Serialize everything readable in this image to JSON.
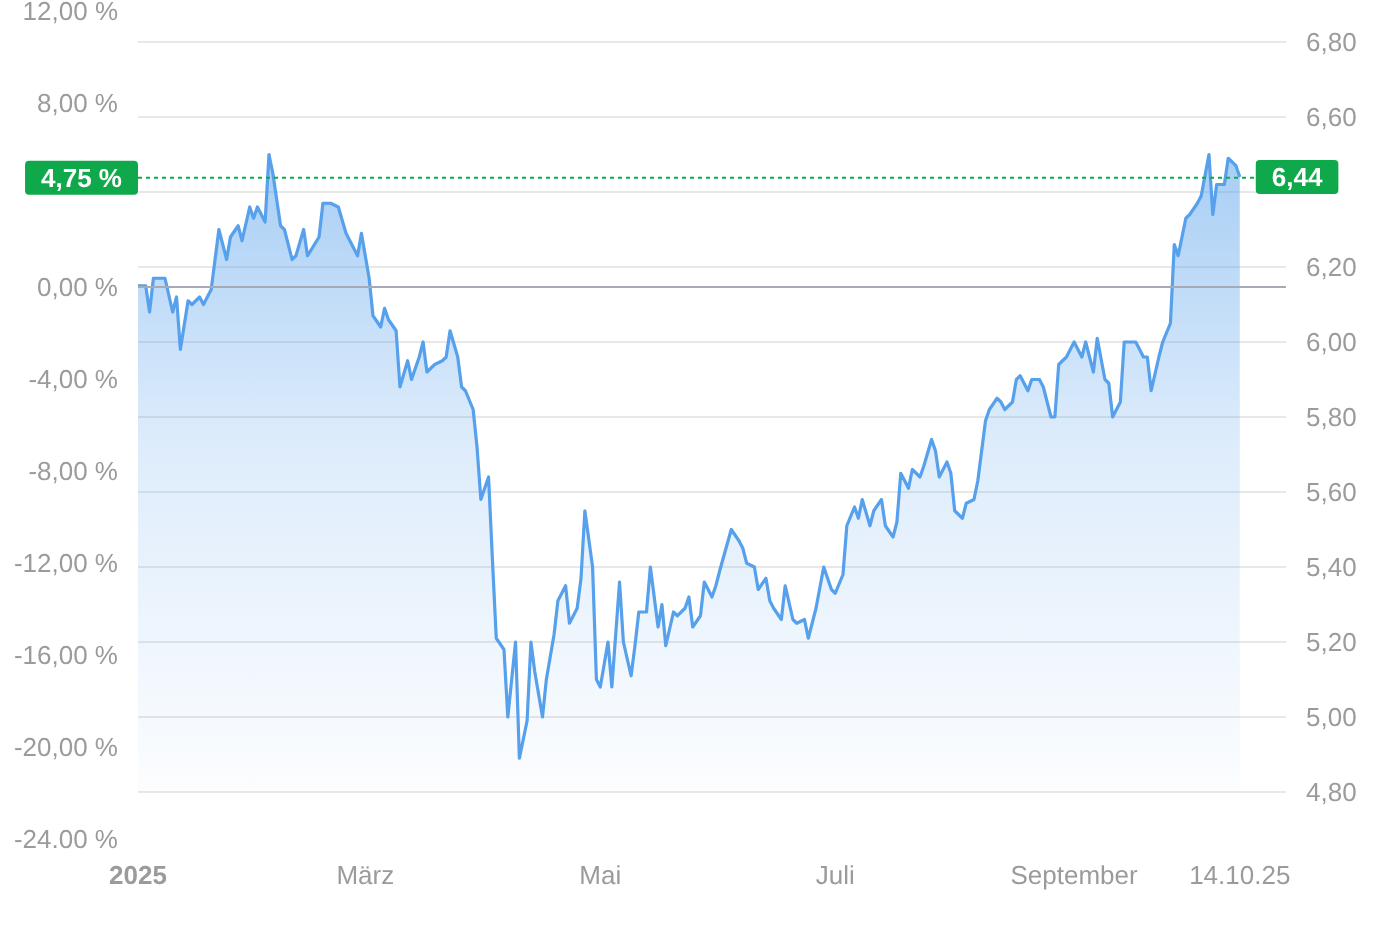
{
  "chart_data": {
    "type": "area",
    "x": [
      "2025-01-01",
      "2025-01-03",
      "2025-01-04",
      "2025-01-05",
      "2025-01-08",
      "2025-01-10",
      "2025-01-11",
      "2025-01-12",
      "2025-01-14",
      "2025-01-15",
      "2025-01-17",
      "2025-01-18",
      "2025-01-20",
      "2025-01-22",
      "2025-01-24",
      "2025-01-25",
      "2025-01-27",
      "2025-01-28",
      "2025-01-30",
      "2025-01-31",
      "2025-02-01",
      "2025-02-03",
      "2025-02-04",
      "2025-02-05",
      "2025-02-07",
      "2025-02-08",
      "2025-02-10",
      "2025-02-11",
      "2025-02-13",
      "2025-02-14",
      "2025-02-17",
      "2025-02-18",
      "2025-02-20",
      "2025-02-22",
      "2025-02-24",
      "2025-02-27",
      "2025-02-28",
      "2025-03-02",
      "2025-03-03",
      "2025-03-05",
      "2025-03-06",
      "2025-03-07",
      "2025-03-09",
      "2025-03-10",
      "2025-03-12",
      "2025-03-13",
      "2025-03-15",
      "2025-03-16",
      "2025-03-17",
      "2025-03-19",
      "2025-03-21",
      "2025-03-22",
      "2025-03-23",
      "2025-03-25",
      "2025-03-26",
      "2025-03-27",
      "2025-03-29",
      "2025-03-30",
      "2025-03-31",
      "2025-04-02",
      "2025-04-03",
      "2025-04-04",
      "2025-04-06",
      "2025-04-07",
      "2025-04-09",
      "2025-04-10",
      "2025-04-12",
      "2025-04-13",
      "2025-04-14",
      "2025-04-16",
      "2025-04-17",
      "2025-04-19",
      "2025-04-20",
      "2025-04-22",
      "2025-04-23",
      "2025-04-25",
      "2025-04-26",
      "2025-04-27",
      "2025-04-29",
      "2025-04-30",
      "2025-05-01",
      "2025-05-03",
      "2025-05-04",
      "2025-05-06",
      "2025-05-07",
      "2025-05-09",
      "2025-05-10",
      "2025-05-11",
      "2025-05-13",
      "2025-05-14",
      "2025-05-16",
      "2025-05-17",
      "2025-05-18",
      "2025-05-20",
      "2025-05-21",
      "2025-05-23",
      "2025-05-24",
      "2025-05-25",
      "2025-05-27",
      "2025-05-28",
      "2025-05-30",
      "2025-05-31",
      "2025-06-01",
      "2025-06-04",
      "2025-06-06",
      "2025-06-07",
      "2025-06-08",
      "2025-06-10",
      "2025-06-11",
      "2025-06-13",
      "2025-06-14",
      "2025-06-15",
      "2025-06-17",
      "2025-06-18",
      "2025-06-20",
      "2025-06-21",
      "2025-06-23",
      "2025-06-24",
      "2025-06-26",
      "2025-06-28",
      "2025-06-30",
      "2025-07-01",
      "2025-07-03",
      "2025-07-04",
      "2025-07-06",
      "2025-07-07",
      "2025-07-08",
      "2025-07-10",
      "2025-07-11",
      "2025-07-13",
      "2025-07-14",
      "2025-07-16",
      "2025-07-17",
      "2025-07-18",
      "2025-07-20",
      "2025-07-21",
      "2025-07-23",
      "2025-07-24",
      "2025-07-26",
      "2025-07-27",
      "2025-07-28",
      "2025-07-30",
      "2025-07-31",
      "2025-08-01",
      "2025-08-03",
      "2025-08-04",
      "2025-08-06",
      "2025-08-07",
      "2025-08-09",
      "2025-08-10",
      "2025-08-12",
      "2025-08-13",
      "2025-08-14",
      "2025-08-16",
      "2025-08-17",
      "2025-08-18",
      "2025-08-20",
      "2025-08-21",
      "2025-08-23",
      "2025-08-24",
      "2025-08-26",
      "2025-08-27",
      "2025-08-28",
      "2025-08-30",
      "2025-08-31",
      "2025-09-01",
      "2025-09-03",
      "2025-09-04",
      "2025-09-06",
      "2025-09-07",
      "2025-09-09",
      "2025-09-10",
      "2025-09-11",
      "2025-09-13",
      "2025-09-14",
      "2025-09-17",
      "2025-09-19",
      "2025-09-20",
      "2025-09-21",
      "2025-09-23",
      "2025-09-24",
      "2025-09-26",
      "2025-09-27",
      "2025-09-28",
      "2025-09-30",
      "2025-10-01",
      "2025-10-03",
      "2025-10-04",
      "2025-10-06",
      "2025-10-07",
      "2025-10-08",
      "2025-10-10",
      "2025-10-11",
      "2025-10-13",
      "2025-10-14"
    ],
    "series": [
      {
        "axis": "y2",
        "color": "#56a0ec",
        "values": [
          6.15,
          6.15,
          6.08,
          6.17,
          6.17,
          6.08,
          6.12,
          5.98,
          6.11,
          6.1,
          6.12,
          6.1,
          6.14,
          6.3,
          6.22,
          6.28,
          6.31,
          6.27,
          6.36,
          6.33,
          6.36,
          6.32,
          6.5,
          6.45,
          6.31,
          6.3,
          6.22,
          6.23,
          6.3,
          6.23,
          6.28,
          6.37,
          6.37,
          6.36,
          6.29,
          6.23,
          6.29,
          6.17,
          6.07,
          6.04,
          6.09,
          6.06,
          6.03,
          5.88,
          5.95,
          5.9,
          5.96,
          6.0,
          5.92,
          5.94,
          5.95,
          5.96,
          6.03,
          5.96,
          5.88,
          5.87,
          5.82,
          5.72,
          5.58,
          5.64,
          5.42,
          5.21,
          5.18,
          5.0,
          5.2,
          4.89,
          4.99,
          5.2,
          5.12,
          5.0,
          5.1,
          5.22,
          5.31,
          5.35,
          5.25,
          5.29,
          5.37,
          5.55,
          5.4,
          5.1,
          5.08,
          5.2,
          5.08,
          5.36,
          5.2,
          5.11,
          5.19,
          5.28,
          5.28,
          5.4,
          5.24,
          5.3,
          5.19,
          5.28,
          5.27,
          5.29,
          5.32,
          5.24,
          5.27,
          5.36,
          5.32,
          5.35,
          5.39,
          5.5,
          5.47,
          5.45,
          5.41,
          5.4,
          5.34,
          5.37,
          5.31,
          5.29,
          5.26,
          5.35,
          5.26,
          5.25,
          5.26,
          5.21,
          5.29,
          5.4,
          5.34,
          5.33,
          5.38,
          5.51,
          5.56,
          5.53,
          5.58,
          5.51,
          5.55,
          5.58,
          5.51,
          5.48,
          5.52,
          5.65,
          5.61,
          5.66,
          5.64,
          5.67,
          5.74,
          5.71,
          5.64,
          5.68,
          5.65,
          5.55,
          5.53,
          5.57,
          5.58,
          5.63,
          5.79,
          5.82,
          5.85,
          5.84,
          5.82,
          5.84,
          5.9,
          5.91,
          5.87,
          5.9,
          5.9,
          5.88,
          5.8,
          5.8,
          5.94,
          5.96,
          5.98,
          6.0,
          5.96,
          6.0,
          5.92,
          6.01,
          5.9,
          5.89,
          5.8,
          5.84,
          6.0,
          6.0,
          5.96,
          5.96,
          5.87,
          5.96,
          6.0,
          6.05,
          6.26,
          6.23,
          6.33,
          6.34,
          6.37,
          6.39,
          6.5,
          6.34,
          6.42,
          6.42,
          6.49,
          6.47,
          6.44
        ],
        "value_labels": [
          null,
          null,
          null,
          null,
          null,
          null,
          null,
          null,
          null,
          null,
          null,
          null,
          null,
          null,
          null,
          null,
          null,
          null,
          null,
          null,
          null,
          null,
          null,
          null,
          null,
          null,
          null,
          null,
          null,
          null,
          null,
          null,
          null,
          null,
          null,
          null,
          null,
          null,
          null,
          null,
          null,
          null,
          null,
          null,
          null,
          null,
          null,
          null,
          null,
          null,
          null,
          null,
          null,
          null,
          null,
          null,
          null,
          null,
          null,
          null,
          null,
          null,
          null,
          null,
          null,
          null,
          null,
          null,
          null,
          null,
          null,
          null,
          null,
          null,
          null,
          null,
          null,
          null,
          null,
          null,
          null,
          null,
          null,
          null,
          null,
          null,
          null,
          null,
          null,
          null,
          null,
          null,
          null,
          null,
          null,
          null,
          null,
          null,
          null,
          null,
          null,
          null,
          null,
          null,
          null,
          null,
          null,
          null,
          null,
          null,
          null,
          null,
          null,
          null,
          null,
          null,
          null,
          null,
          null,
          null,
          null,
          null,
          null,
          null,
          null,
          null,
          null,
          null,
          null,
          null,
          null,
          null,
          null,
          null,
          null,
          null,
          null,
          null,
          null,
          null,
          null,
          null,
          null,
          null,
          null,
          null,
          null,
          null,
          null,
          null,
          null,
          null,
          null,
          null,
          null,
          null,
          null,
          null,
          null,
          null,
          null,
          null,
          null,
          null,
          null,
          null,
          null,
          null,
          null,
          null,
          null,
          null,
          null,
          null,
          null,
          null,
          null,
          null,
          null,
          null,
          null,
          null,
          null,
          null,
          null,
          null,
          null,
          null,
          null,
          null,
          null,
          null,
          null,
          null,
          "6,44"
        ]
      }
    ],
    "xlim": [
      "2025-01-01",
      "2025-10-26"
    ],
    "xticks": [
      {
        "value": "2025-01-01",
        "label": "2025"
      },
      {
        "value": "2025-03-01",
        "label": "März"
      },
      {
        "value": "2025-05-01",
        "label": "Mai"
      },
      {
        "value": "2025-07-01",
        "label": "Juli"
      },
      {
        "value": "2025-09-01",
        "label": "September"
      },
      {
        "value": "2025-10-14",
        "label": "14.10.25"
      }
    ],
    "ylim": [
      -24,
      12
    ],
    "yticks": [
      {
        "value": 12,
        "label": "12,00 %"
      },
      {
        "value": 8,
        "label": "8,00 %"
      },
      {
        "value": 0,
        "label": "0,00 %"
      },
      {
        "value": -4,
        "label": "-4,00 %"
      },
      {
        "value": -8,
        "label": "-8,00 %"
      },
      {
        "value": -12,
        "label": "-12,00 %"
      },
      {
        "value": -16,
        "label": "-16,00 %"
      },
      {
        "value": -20,
        "label": "-20,00 %"
      },
      {
        "value": -24,
        "label": "-24.00 %"
      }
    ],
    "y2lim": [
      4.8,
      6.8
    ],
    "y2ticks": [
      {
        "value": 4.8,
        "label": "4,80"
      },
      {
        "value": 5.0,
        "label": "5,00"
      },
      {
        "value": 5.2,
        "label": "5,20"
      },
      {
        "value": 5.4,
        "label": "5,40"
      },
      {
        "value": 5.6,
        "label": "5,60"
      },
      {
        "value": 5.8,
        "label": "5,80"
      },
      {
        "value": 6.0,
        "label": "6,00"
      },
      {
        "value": 6.2,
        "label": "6,20"
      },
      {
        "value": 6.4,
        "label": null
      },
      {
        "value": 6.6,
        "label": "6,60"
      },
      {
        "value": 6.8,
        "label": "6,80"
      }
    ],
    "grid": "y2",
    "ref_lines": [
      {
        "axis": "y",
        "value": 0,
        "color": "#a6a9b6"
      },
      {
        "axis": "y",
        "value": 4.75,
        "label": "4,75 %",
        "color": "#0fa84a",
        "line_style": "dotted"
      }
    ]
  }
}
